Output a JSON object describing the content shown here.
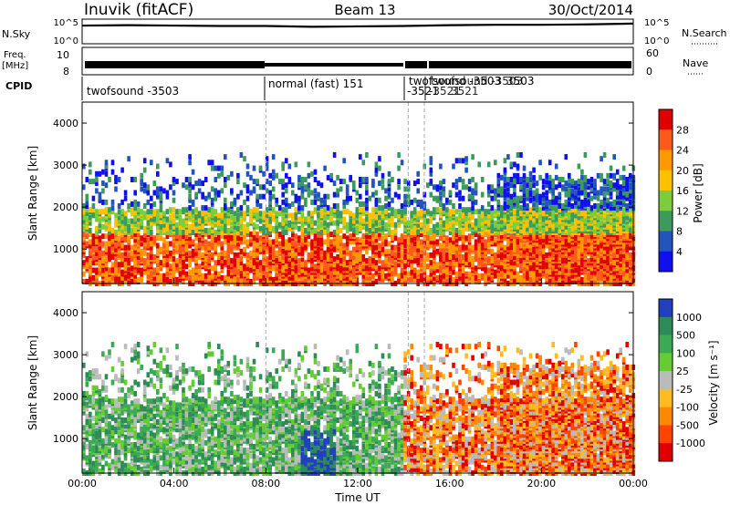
{
  "header": {
    "title": "Inuvik (fitACF)",
    "beam": "Beam 13",
    "date": "30/Oct/2014"
  },
  "chart_data": [
    {
      "type": "line",
      "panel": "noise",
      "left_label": "N.Sky",
      "right_label": "N.Search",
      "left_ticks": [
        "10^5",
        "10^0"
      ],
      "right_ticks": [
        "10^5",
        "10^0"
      ],
      "x": [
        0,
        2,
        4,
        6,
        8,
        10,
        12,
        14,
        16,
        18,
        20,
        22,
        24
      ],
      "y": [
        4.3,
        4.4,
        4.3,
        4.2,
        4.2,
        4.0,
        4.1,
        4.2,
        4.4,
        4.5,
        4.5,
        4.6,
        4.8
      ]
    },
    {
      "type": "line",
      "panel": "frequency",
      "left_label": "Freq.",
      "left_unit": "[MHz]",
      "right_label": "Nave",
      "left_ticks": [
        "10",
        "8"
      ],
      "right_ticks": [
        "60",
        "0"
      ]
    },
    {
      "type": "table",
      "panel": "cpid",
      "label": "CPID",
      "segments": [
        {
          "start": 0.0,
          "end": 8.0,
          "name": "twofsound -3503"
        },
        {
          "start": 8.0,
          "end": 14.2,
          "name": "normal (fast) 151"
        },
        {
          "start": 14.2,
          "end": 14.9,
          "name": "-3521"
        },
        {
          "start": 14.9,
          "end": 24.0,
          "name": "twofsound -3503"
        }
      ],
      "overlap_labels": [
        "twofsound -3503",
        "-3521",
        "3503",
        "3521"
      ]
    },
    {
      "type": "heatmap",
      "panel": "power",
      "ylabel": "Slant Range [km]",
      "ylim": [
        180,
        4500
      ],
      "yticks": [
        1000,
        2000,
        3000,
        4000
      ],
      "xlim": [
        0,
        24
      ],
      "colorbar_label": "Power [dB]",
      "colorbar_ticks": [
        "28",
        "24",
        "20",
        "16",
        "12",
        "8",
        "4"
      ],
      "colorbar_colors": [
        "#e00000",
        "#ff5a1c",
        "#ff9900",
        "#ffc000",
        "#7ccd3c",
        "#3c9a5a",
        "#2255bb",
        "#1010ee"
      ]
    },
    {
      "type": "heatmap",
      "panel": "velocity",
      "ylabel": "Slant Range [km]",
      "ylim": [
        180,
        4500
      ],
      "yticks": [
        1000,
        2000,
        3000,
        4000
      ],
      "xlim": [
        0,
        24
      ],
      "xticks": [
        "00:00",
        "04:00",
        "08:00",
        "12:00",
        "16:00",
        "20:00",
        "00:00"
      ],
      "xlabel": "Time UT",
      "colorbar_label": "Velocity [m s⁻¹]",
      "colorbar_ticks": [
        "1000",
        "500",
        "100",
        "25",
        "-25",
        "-100",
        "-500",
        "-1000"
      ],
      "colorbar_colors": [
        "#2040c0",
        "#2e8b57",
        "#3caa55",
        "#66cc33",
        "#bbbbbb",
        "#ffbb22",
        "#ff8800",
        "#ff4400",
        "#e00000"
      ]
    }
  ]
}
